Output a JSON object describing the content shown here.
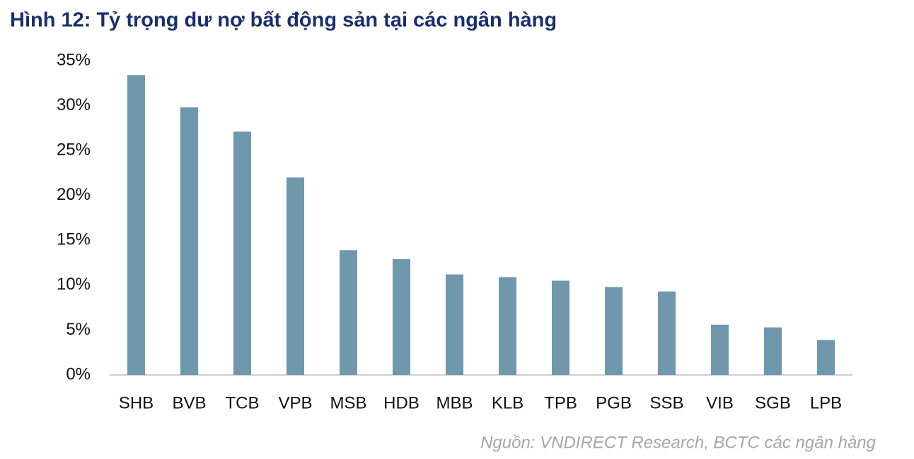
{
  "chart_data": {
    "type": "bar",
    "title": "Hình 12: Tỷ trọng dư nợ bất động sản tại các ngân hàng",
    "source": "Nguồn: VNDIRECT Research, BCTC các ngân hàng",
    "categories": [
      "SHB",
      "BVB",
      "TCB",
      "VPB",
      "MSB",
      "HDB",
      "MBB",
      "KLB",
      "TPB",
      "PGB",
      "SSB",
      "VIB",
      "SGB",
      "LPB"
    ],
    "values": [
      33.4,
      29.8,
      27.1,
      22.0,
      13.9,
      12.9,
      11.2,
      10.9,
      10.5,
      9.8,
      9.3,
      5.6,
      5.3,
      3.9
    ],
    "color": "#6f98ac",
    "ylim": [
      0,
      35
    ],
    "yticks": [
      {
        "value": 0,
        "label": "0%"
      },
      {
        "value": 5,
        "label": "5%"
      },
      {
        "value": 10,
        "label": "10%"
      },
      {
        "value": 15,
        "label": "15%"
      },
      {
        "value": 20,
        "label": "20%"
      },
      {
        "value": 25,
        "label": "25%"
      },
      {
        "value": 30,
        "label": "30%"
      },
      {
        "value": 35,
        "label": "35%"
      }
    ],
    "grid": false
  }
}
